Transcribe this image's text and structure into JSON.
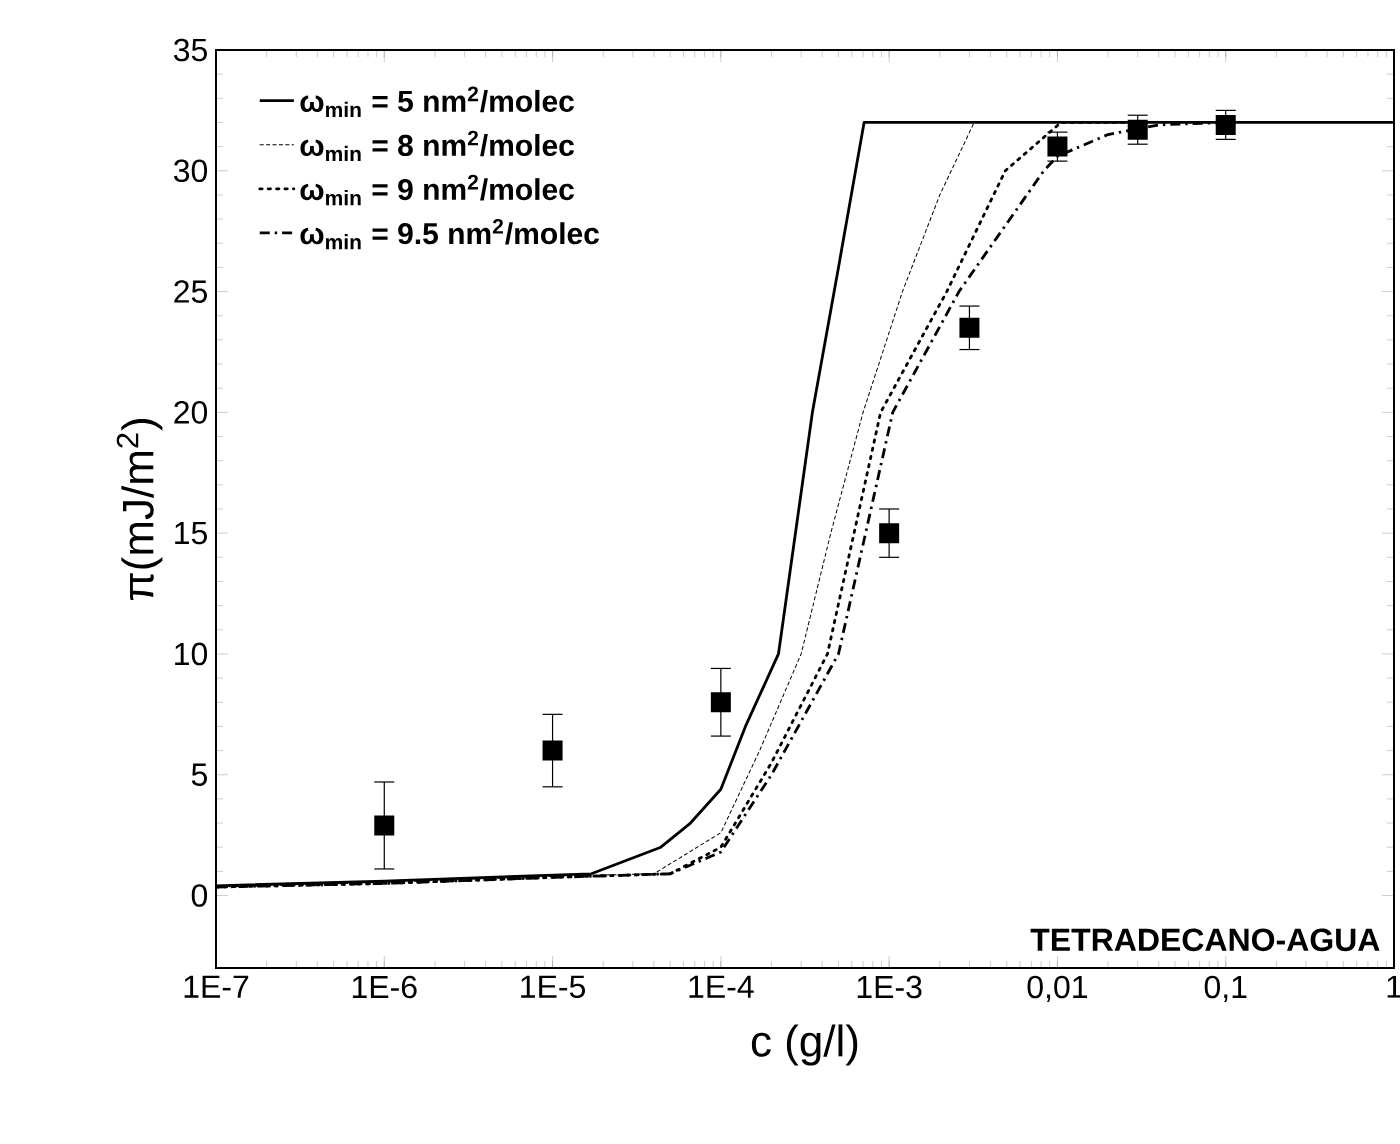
{
  "chart_data": {
    "type": "line",
    "xlabel": "c (g/l)",
    "ylabel": "π(mJ/m$^{2}$)",
    "log": "x",
    "xlim": [
      1e-07,
      1
    ],
    "ylim": [
      -3,
      35
    ],
    "xticks": [
      {
        "value": 1e-07,
        "label": "1E-7"
      },
      {
        "value": 1e-06,
        "label": "1E-6"
      },
      {
        "value": 1e-05,
        "label": "1E-5"
      },
      {
        "value": 0.0001,
        "label": "1E-4"
      },
      {
        "value": 0.001,
        "label": "1E-3"
      },
      {
        "value": 0.01,
        "label": "0,01"
      },
      {
        "value": 0.1,
        "label": "0,1"
      },
      1
    ],
    "yticks": [
      0,
      5,
      10,
      15,
      20,
      25,
      30,
      35
    ],
    "legend": "top left",
    "grid": false,
    "annotations": [
      "TETRADECANO-AGUA"
    ],
    "series": [
      {
        "name": "ω$_{min}$ = 5 nm$^{2}$/molec",
        "color": "#000000",
        "line_style": "solid",
        "x": [
          1e-07,
          1e-06,
          1.7e-05,
          4.4e-05,
          6.6e-05,
          0.0001,
          0.00014,
          0.00022,
          0.00035,
          0.0005,
          0.00071,
          1
        ],
        "values": [
          0.4,
          0.6,
          0.9,
          2.0,
          3.0,
          4.4,
          7.0,
          10.0,
          20.0,
          26.0,
          32.0,
          32.0
        ]
      },
      {
        "name": "ω$_{min}$ = 8 nm$^{2}$/molec",
        "color": "#000000",
        "line_style": "dashed",
        "x": [
          1e-07,
          1e-06,
          1e-05,
          4e-05,
          0.0001,
          0.00017,
          0.0003,
          0.00045,
          0.0007,
          0.0012,
          0.002,
          0.0032
        ],
        "values": [
          0.35,
          0.55,
          0.8,
          0.9,
          2.6,
          6,
          10,
          15,
          20,
          25,
          29,
          32
        ]
      },
      {
        "name": "ω$_{min}$ = 9 nm$^{2}$/molec",
        "color": "#000000",
        "line_style": "dotted",
        "x": [
          1e-07,
          1e-06,
          1e-05,
          5e-05,
          0.0001,
          0.0002,
          0.00043,
          0.00089,
          0.0022,
          0.0049,
          0.0105,
          0.03
        ],
        "values": [
          0.35,
          0.5,
          0.75,
          0.9,
          2.0,
          5.5,
          10,
          20,
          25,
          30,
          32,
          32
        ]
      },
      {
        "name": "ω$_{min}$ = 9.5 nm$^{2}$/molec",
        "color": "#000000",
        "line_style": "dashdot",
        "x": [
          1e-07,
          1e-06,
          1e-05,
          5e-05,
          0.0001,
          0.0002,
          0.0005,
          0.00105,
          0.0026,
          0.0083,
          0.01,
          0.02,
          0.04,
          0.1
        ],
        "values": [
          0.35,
          0.5,
          0.75,
          0.9,
          1.8,
          5,
          10,
          20,
          25,
          30,
          30.6,
          31.5,
          31.9,
          32
        ]
      },
      {
        "type": "scatter",
        "marker": "square",
        "color": "#000000",
        "x": [
          1e-06,
          1e-05,
          0.0001,
          0.001,
          0.003,
          0.01,
          0.03,
          0.1
        ],
        "values": [
          2.9,
          6.0,
          8.0,
          15.0,
          23.5,
          31.0,
          31.7,
          31.9
        ],
        "errors": [
          1.8,
          1.5,
          1.4,
          1.0,
          0.9,
          0.6,
          0.6,
          0.6
        ]
      }
    ]
  }
}
